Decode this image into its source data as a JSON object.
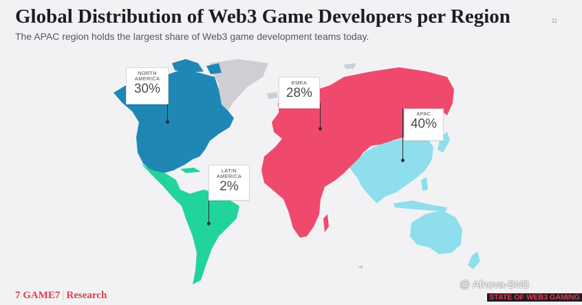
{
  "header": {
    "title": "Global Distribution of Web3 Game Developers per Region",
    "subtitle": "The APAC region holds the largest share of Web3 game development teams today.",
    "page_number": "11"
  },
  "regions": [
    {
      "id": "north-america",
      "name": "NORTH AMERICA",
      "share": "30%",
      "share_value": 30,
      "color": "#1f87b4"
    },
    {
      "id": "latin-america",
      "name": "LATIN AMERICA",
      "share": "2%",
      "share_value": 2,
      "color": "#20d49c"
    },
    {
      "id": "emea",
      "name": "EMEA",
      "share": "28%",
      "share_value": 28,
      "color": "#ef4a6d"
    },
    {
      "id": "apac",
      "name": "APAC",
      "share": "40%",
      "share_value": 40,
      "color": "#8edeed"
    }
  ],
  "map": {
    "other_land_color": "#cfcfd3"
  },
  "footer": {
    "logo_mark": "7",
    "logo_text": "GAME7",
    "research_label": "Research",
    "watermark": "@ Afnova-BNB",
    "badge": "STATE OF WEB3 GAMING"
  }
}
